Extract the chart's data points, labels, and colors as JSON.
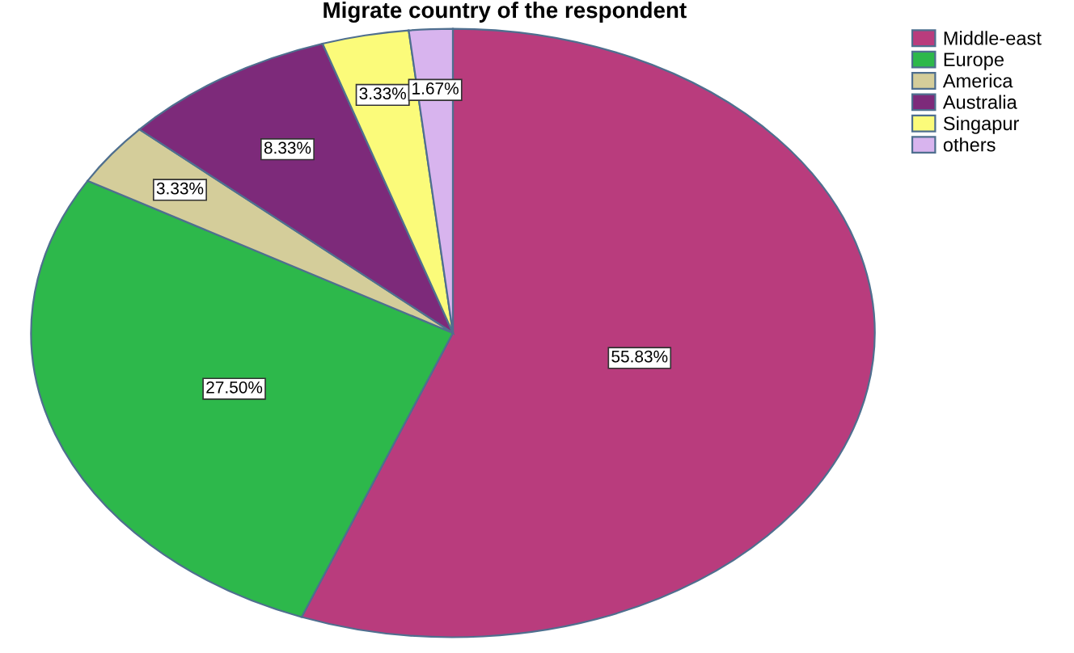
{
  "chart_data": {
    "type": "pie",
    "title": "Migrate country of the respondent",
    "categories": [
      "Middle-east",
      "Europe",
      "America",
      "Australia",
      "Singapur",
      "others"
    ],
    "values": [
      55.83,
      27.5,
      3.33,
      8.33,
      3.33,
      1.67
    ],
    "value_labels": [
      "55.83%",
      "27.50%",
      "3.33%",
      "8.33%",
      "3.33%",
      "1.67%"
    ],
    "colors": [
      "#b93c7d",
      "#2db84b",
      "#d4cd9a",
      "#7d2a7a",
      "#fbfb7a",
      "#d8b4ee"
    ],
    "legend": "top right"
  }
}
